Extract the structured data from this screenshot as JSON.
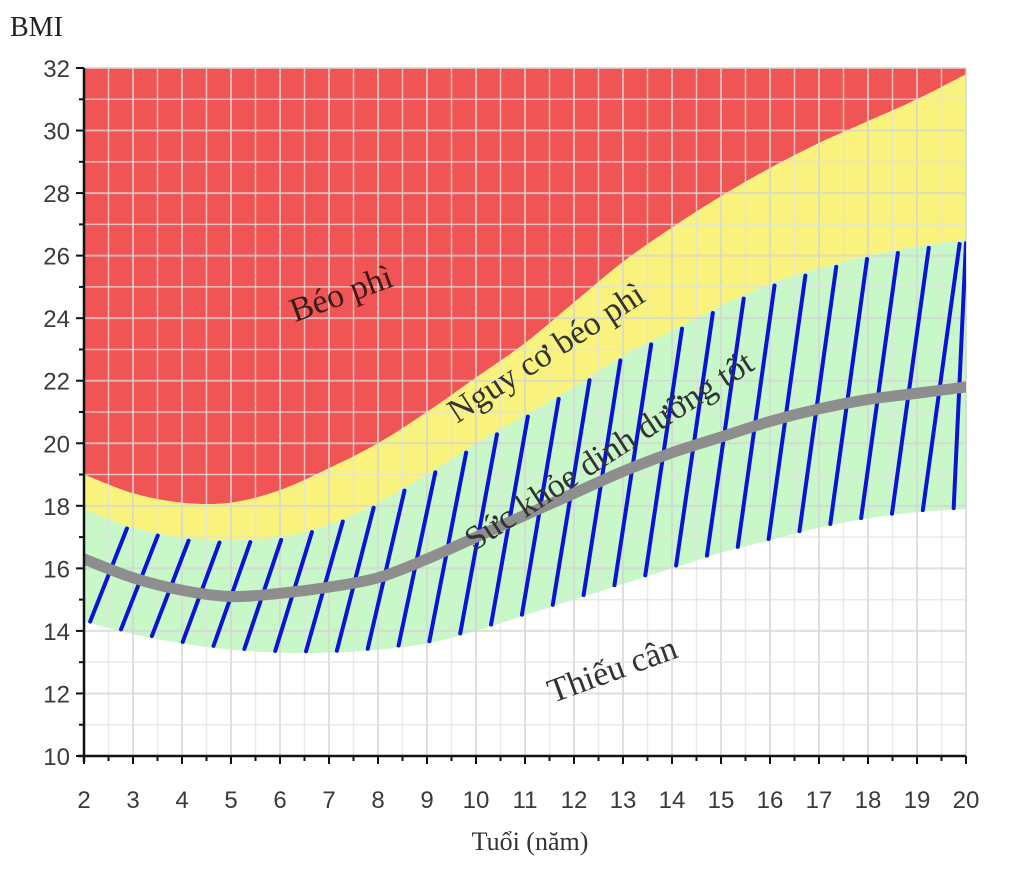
{
  "chart_data": {
    "type": "area",
    "xlabel": "Tuổi (năm)",
    "ylabel": "BMI",
    "xlim": [
      2,
      20
    ],
    "ylim": [
      10,
      32
    ],
    "x_ticks": [
      2,
      3,
      4,
      5,
      6,
      7,
      8,
      9,
      10,
      11,
      12,
      13,
      14,
      15,
      16,
      17,
      18,
      19,
      20
    ],
    "y_ticks": [
      10,
      12,
      14,
      16,
      18,
      20,
      22,
      24,
      26,
      28,
      30,
      32
    ],
    "grid": true,
    "colors": {
      "obese": "#f05454",
      "overweight": "#f9f27c",
      "healthy": "#c8f7c8",
      "underweight": "#ffffff",
      "hatch": "#0a14d6",
      "median": "#8e8e8e",
      "grid": "#cfcfcf"
    },
    "x": [
      2,
      3,
      4,
      5,
      6,
      7,
      8,
      9,
      10,
      11,
      12,
      13,
      14,
      15,
      16,
      17,
      18,
      19,
      20
    ],
    "boundaries": {
      "overweight_obese": [
        19.0,
        18.4,
        18.1,
        18.1,
        18.5,
        19.2,
        20.0,
        21.0,
        22.1,
        23.2,
        24.5,
        25.8,
        26.9,
        27.9,
        28.8,
        29.6,
        30.3,
        31.0,
        31.8
      ],
      "healthy_overweight": [
        17.9,
        17.3,
        17.0,
        16.9,
        17.0,
        17.4,
        18.1,
        19.0,
        20.0,
        20.9,
        21.8,
        22.8,
        23.6,
        24.4,
        25.1,
        25.6,
        26.0,
        26.3,
        26.5
      ],
      "underweight_healthy": [
        14.3,
        13.9,
        13.6,
        13.4,
        13.3,
        13.3,
        13.4,
        13.6,
        14.0,
        14.5,
        15.0,
        15.5,
        16.0,
        16.5,
        16.9,
        17.3,
        17.6,
        17.8,
        17.9
      ],
      "median": [
        16.3,
        15.7,
        15.3,
        15.1,
        15.2,
        15.4,
        15.7,
        16.3,
        17.0,
        17.7,
        18.4,
        19.1,
        19.7,
        20.2,
        20.7,
        21.1,
        21.4,
        21.6,
        21.8
      ]
    },
    "region_labels": {
      "obese": "Béo phì",
      "overweight": "Nguy cơ béo phì",
      "healthy": "Sức khỏe dinh dưỡng tốt",
      "underweight": "Thiếu cân"
    },
    "annotations": {
      "hatched_band": "healthy",
      "hatch_count": 29
    }
  }
}
